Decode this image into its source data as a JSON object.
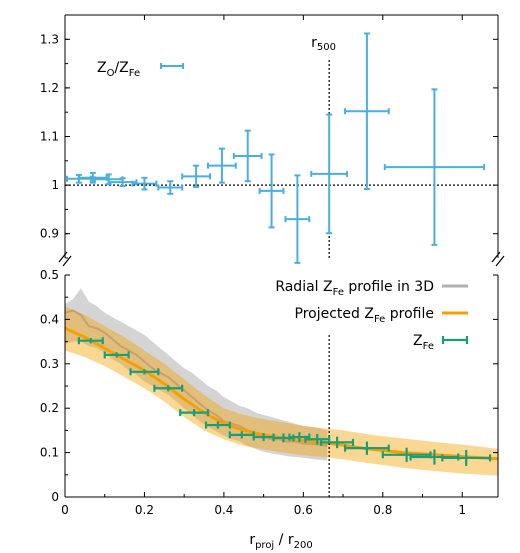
{
  "chart_data": [
    {
      "type": "scatter",
      "panel": "top",
      "xlabel": "",
      "ylabel": "",
      "xlim": [
        0,
        1.09
      ],
      "ylim": [
        0.85,
        1.35
      ],
      "yticks": [
        0.9,
        1,
        1.1,
        1.2,
        1.3
      ],
      "ytick_labels": [
        "0.9",
        "1",
        "1.1",
        "1.2",
        "1.3"
      ],
      "reference_line_y": 1,
      "vline_x": 0.665,
      "vline_label": {
        "main": "r",
        "sub": "500"
      },
      "legend_position": "top-left",
      "colors": {
        "points": "#4aaee0"
      },
      "series": [
        {
          "name": "ZO/ZFe",
          "legend_label": {
            "main": "Z",
            "sub1": "O",
            "slash": "/Z",
            "sub2": "Fe"
          },
          "x": [
            0.035,
            0.07,
            0.11,
            0.145,
            0.2,
            0.265,
            0.33,
            0.395,
            0.46,
            0.52,
            0.585,
            0.665,
            0.76,
            0.93
          ],
          "y": [
            1.013,
            1.015,
            1.012,
            1.006,
            1.003,
            0.995,
            1.018,
            1.04,
            1.06,
            0.988,
            0.93,
            1.023,
            1.152,
            1.037
          ],
          "xerr": [
            0.03,
            0.035,
            0.035,
            0.035,
            0.03,
            0.03,
            0.035,
            0.035,
            0.035,
            0.03,
            0.03,
            0.045,
            0.055,
            0.125
          ],
          "yerr": [
            0.008,
            0.01,
            0.01,
            0.008,
            0.012,
            0.013,
            0.022,
            0.035,
            0.052,
            0.075,
            0.09,
            0.122,
            0.16,
            0.16
          ]
        }
      ]
    },
    {
      "type": "line",
      "panel": "bottom",
      "xlabel": {
        "main": "r",
        "sub1": "proj",
        "slash": " / r",
        "sub2": "200"
      },
      "ylabel": "",
      "xlim": [
        0,
        1.09
      ],
      "ylim": [
        0,
        0.5
      ],
      "xticks": [
        0,
        0.2,
        0.4,
        0.6,
        0.8,
        1
      ],
      "xtick_labels": [
        "0",
        "0.2",
        "0.4",
        "0.6",
        "0.8",
        "1"
      ],
      "yticks": [
        0,
        0.1,
        0.2,
        0.3,
        0.4,
        0.5
      ],
      "ytick_labels": [
        "0",
        "0.1",
        "0.2",
        "0.3",
        "0.4",
        "0.5"
      ],
      "vline_x": 0.665,
      "legend_position": "top-right",
      "colors": {
        "radial": "#b0b0b0",
        "projected": "#f5a000",
        "measured": "#1a9e77"
      },
      "series": [
        {
          "name": "Radial ZFe profile in 3D",
          "legend_label": {
            "pre": "Radial Z",
            "sub": "Fe",
            "post": " profile in 3D"
          },
          "x": [
            0,
            0.02,
            0.04,
            0.06,
            0.08,
            0.1,
            0.12,
            0.14,
            0.16,
            0.18,
            0.2,
            0.22,
            0.24,
            0.26,
            0.28,
            0.3,
            0.32,
            0.34,
            0.36,
            0.38,
            0.4,
            0.42,
            0.44,
            0.46,
            0.48,
            0.5,
            0.52,
            0.54,
            0.56,
            0.58,
            0.6,
            0.62,
            0.64,
            0.66
          ],
          "y": [
            0.415,
            0.42,
            0.41,
            0.385,
            0.38,
            0.37,
            0.355,
            0.34,
            0.33,
            0.32,
            0.305,
            0.29,
            0.28,
            0.27,
            0.255,
            0.24,
            0.225,
            0.21,
            0.195,
            0.185,
            0.17,
            0.165,
            0.16,
            0.15,
            0.14,
            0.135,
            0.13,
            0.13,
            0.125,
            0.125,
            0.12,
            0.12,
            0.118,
            0.115
          ],
          "band_low": [
            0.345,
            0.35,
            0.35,
            0.34,
            0.335,
            0.325,
            0.31,
            0.3,
            0.285,
            0.275,
            0.26,
            0.25,
            0.24,
            0.23,
            0.215,
            0.2,
            0.185,
            0.17,
            0.158,
            0.148,
            0.138,
            0.13,
            0.125,
            0.115,
            0.108,
            0.102,
            0.098,
            0.095,
            0.092,
            0.09,
            0.088,
            0.086,
            0.084,
            0.082
          ],
          "band_high": [
            0.435,
            0.445,
            0.47,
            0.44,
            0.43,
            0.415,
            0.405,
            0.395,
            0.385,
            0.375,
            0.365,
            0.35,
            0.335,
            0.32,
            0.305,
            0.29,
            0.28,
            0.265,
            0.25,
            0.24,
            0.225,
            0.215,
            0.205,
            0.2,
            0.19,
            0.185,
            0.18,
            0.175,
            0.17,
            0.165,
            0.16,
            0.158,
            0.155,
            0.15
          ]
        },
        {
          "name": "Projected ZFe profile",
          "legend_label": {
            "pre": "Projected Z",
            "sub": "Fe",
            "post": " profile"
          },
          "x": [
            0,
            0.05,
            0.1,
            0.15,
            0.2,
            0.25,
            0.3,
            0.35,
            0.4,
            0.45,
            0.5,
            0.55,
            0.6,
            0.65,
            0.7,
            0.75,
            0.8,
            0.85,
            0.9,
            0.95,
            1,
            1.05,
            1.09
          ],
          "y": [
            0.38,
            0.36,
            0.335,
            0.31,
            0.285,
            0.255,
            0.22,
            0.19,
            0.165,
            0.15,
            0.14,
            0.133,
            0.127,
            0.122,
            0.117,
            0.11,
            0.105,
            0.1,
            0.097,
            0.094,
            0.091,
            0.088,
            0.086
          ],
          "band_low": [
            0.33,
            0.315,
            0.295,
            0.27,
            0.245,
            0.215,
            0.18,
            0.15,
            0.13,
            0.115,
            0.107,
            0.1,
            0.094,
            0.09,
            0.085,
            0.078,
            0.072,
            0.066,
            0.061,
            0.057,
            0.053,
            0.05,
            0.048
          ],
          "band_high": [
            0.43,
            0.41,
            0.385,
            0.36,
            0.33,
            0.3,
            0.265,
            0.23,
            0.2,
            0.185,
            0.175,
            0.168,
            0.16,
            0.155,
            0.15,
            0.143,
            0.137,
            0.132,
            0.127,
            0.122,
            0.118,
            0.113,
            0.108
          ]
        },
        {
          "name": "ZFe",
          "legend_label": {
            "pre": "Z",
            "sub": "Fe",
            "post": ""
          },
          "x": [
            0.065,
            0.13,
            0.2,
            0.26,
            0.325,
            0.385,
            0.445,
            0.5,
            0.55,
            0.59,
            0.635,
            0.685,
            0.76,
            0.86,
            0.93,
            1.01
          ],
          "y": [
            0.352,
            0.32,
            0.282,
            0.245,
            0.19,
            0.162,
            0.14,
            0.135,
            0.133,
            0.135,
            0.13,
            0.123,
            0.11,
            0.095,
            0.09,
            0.088
          ],
          "xerr": [
            0.03,
            0.03,
            0.035,
            0.035,
            0.035,
            0.03,
            0.03,
            0.025,
            0.025,
            0.025,
            0.03,
            0.04,
            0.055,
            0.06,
            0.06,
            0.06
          ],
          "yerr": [
            0.006,
            0.006,
            0.006,
            0.007,
            0.008,
            0.008,
            0.008,
            0.009,
            0.01,
            0.011,
            0.012,
            0.013,
            0.015,
            0.016,
            0.017,
            0.018
          ]
        }
      ]
    }
  ]
}
